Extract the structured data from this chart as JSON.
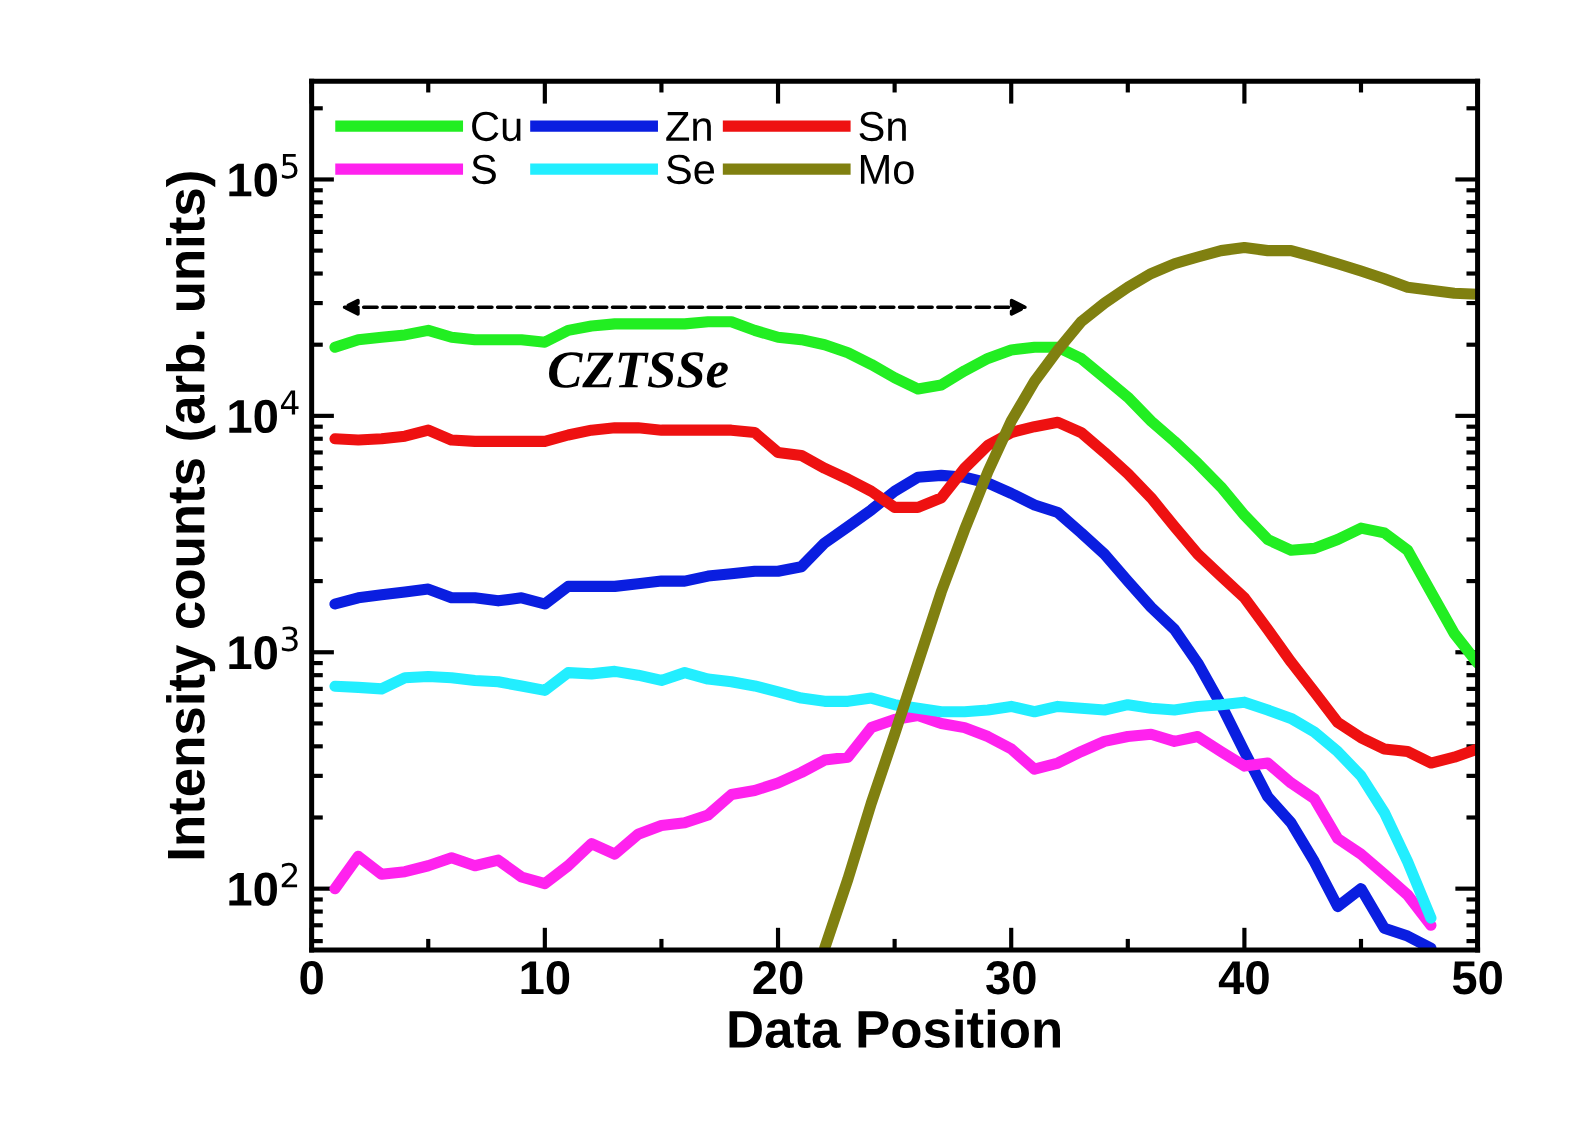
{
  "chart_data": {
    "type": "line",
    "xlabel": "Data Position",
    "ylabel": "Intensity counts (arb. units)",
    "x": [
      1,
      2,
      3,
      4,
      5,
      6,
      7,
      8,
      9,
      10,
      11,
      12,
      13,
      14,
      15,
      16,
      17,
      18,
      19,
      20,
      21,
      22,
      23,
      24,
      25,
      26,
      27,
      28,
      29,
      30,
      31,
      32,
      33,
      34,
      35,
      36,
      37,
      38,
      39,
      40,
      41,
      42,
      43,
      44,
      45,
      46,
      47,
      48,
      49,
      50
    ],
    "series": [
      {
        "name": "Cu",
        "color": "#22ee22",
        "values": [
          19500,
          21000,
          21500,
          22000,
          23000,
          21500,
          21000,
          21000,
          21000,
          20500,
          23000,
          24000,
          24500,
          24500,
          24500,
          24500,
          25000,
          25000,
          23000,
          21500,
          21000,
          20000,
          18500,
          16500,
          14500,
          13000,
          13500,
          15500,
          17500,
          19000,
          19500,
          19500,
          17500,
          14500,
          12000,
          9500,
          7800,
          6300,
          5000,
          3800,
          3000,
          2700,
          2750,
          3000,
          3350,
          3200,
          2700,
          1800,
          1200,
          900
        ]
      },
      {
        "name": "Zn",
        "color": "#0a1ee0",
        "values": [
          1600,
          1700,
          1750,
          1800,
          1850,
          1700,
          1700,
          1650,
          1700,
          1600,
          1900,
          1900,
          1900,
          1950,
          2000,
          2000,
          2100,
          2150,
          2200,
          2200,
          2300,
          2900,
          3400,
          4000,
          4800,
          5500,
          5600,
          5500,
          5200,
          4700,
          4200,
          3900,
          3200,
          2600,
          2000,
          1550,
          1250,
          900,
          600,
          380,
          245,
          190,
          130,
          84,
          100,
          68,
          63,
          56,
          null,
          null
        ]
      },
      {
        "name": "Sn",
        "color": "#ee1111",
        "values": [
          8000,
          7900,
          8000,
          8200,
          8700,
          7900,
          7800,
          7800,
          7800,
          7800,
          8300,
          8700,
          8900,
          8900,
          8700,
          8700,
          8700,
          8700,
          8500,
          7000,
          6800,
          6000,
          5400,
          4800,
          4100,
          4100,
          4500,
          6000,
          7500,
          8500,
          9000,
          9400,
          8500,
          7000,
          5700,
          4500,
          3400,
          2600,
          2100,
          1700,
          1250,
          910,
          680,
          505,
          435,
          390,
          380,
          340,
          360,
          390
        ]
      },
      {
        "name": "S",
        "color": "#ff22ee",
        "values": [
          100,
          137,
          115,
          118,
          125,
          135,
          125,
          132,
          112,
          105,
          125,
          155,
          140,
          170,
          185,
          190,
          205,
          250,
          260,
          280,
          310,
          350,
          360,
          480,
          520,
          540,
          500,
          480,
          440,
          390,
          320,
          340,
          380,
          420,
          440,
          450,
          420,
          440,
          380,
          330,
          340,
          280,
          240,
          163,
          140,
          115,
          94,
          70,
          null,
          null
        ]
      },
      {
        "name": "Se",
        "color": "#22eeff",
        "values": [
          718,
          710,
          700,
          780,
          790,
          780,
          760,
          750,
          720,
          690,
          820,
          810,
          830,
          800,
          760,
          820,
          770,
          750,
          720,
          680,
          640,
          620,
          620,
          640,
          600,
          580,
          560,
          560,
          570,
          590,
          560,
          590,
          580,
          570,
          600,
          580,
          570,
          590,
          600,
          615,
          570,
          525,
          460,
          380,
          300,
          210,
          130,
          75,
          null,
          null
        ]
      },
      {
        "name": "Mo",
        "color": "#808010",
        "values": [
          null,
          null,
          null,
          null,
          null,
          null,
          null,
          null,
          null,
          null,
          null,
          null,
          null,
          null,
          null,
          null,
          null,
          null,
          null,
          null,
          null,
          56,
          110,
          230,
          450,
          900,
          1800,
          3300,
          5800,
          9500,
          14000,
          19000,
          25000,
          30000,
          35000,
          40000,
          44000,
          47000,
          50000,
          51500,
          50000,
          50000,
          47000,
          44000,
          41000,
          38000,
          35000,
          34000,
          33000,
          32700
        ]
      }
    ],
    "log": "y",
    "xlim": [
      0,
      50
    ],
    "xticks": [
      0,
      10,
      20,
      30,
      40,
      50
    ],
    "ylim": [
      55,
      260000
    ],
    "yticks": [
      {
        "value": 100,
        "label": "10$^{2}$"
      },
      {
        "value": 1000,
        "label": "10$^{3}$"
      },
      {
        "value": 10000,
        "label": "10$^{4}$"
      },
      {
        "value": 100000,
        "label": "10$^{5}$"
      }
    ],
    "grid": false,
    "legend": "top left",
    "marker": "none",
    "line_style": "solid",
    "annotations": [
      "CZTSSe"
    ]
  }
}
